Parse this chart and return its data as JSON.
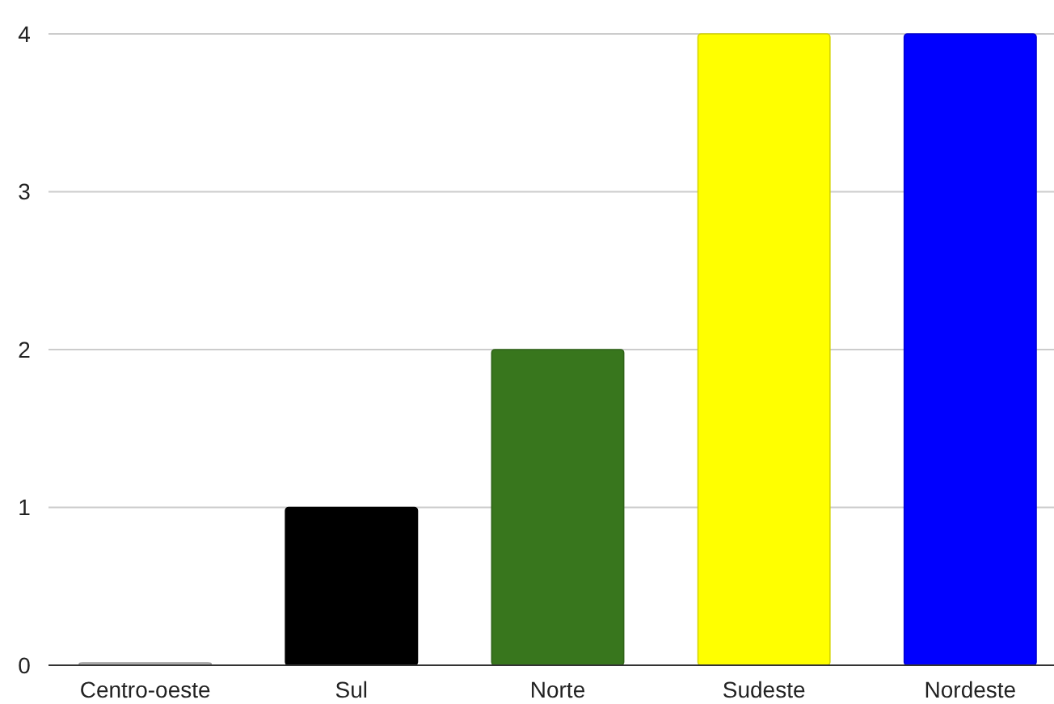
{
  "chart_data": {
    "type": "bar",
    "categories": [
      "Centro-oeste",
      "Sul",
      "Norte",
      "Sudeste",
      "Nordeste"
    ],
    "values": [
      0,
      1,
      2,
      4,
      4
    ],
    "colors": [
      "#b7b7b7",
      "#000000",
      "#38761d",
      "#ffff00",
      "#0000ff"
    ],
    "ylim": [
      0,
      4
    ],
    "yticks": [
      0,
      1,
      2,
      3,
      4
    ],
    "grid": "y"
  }
}
